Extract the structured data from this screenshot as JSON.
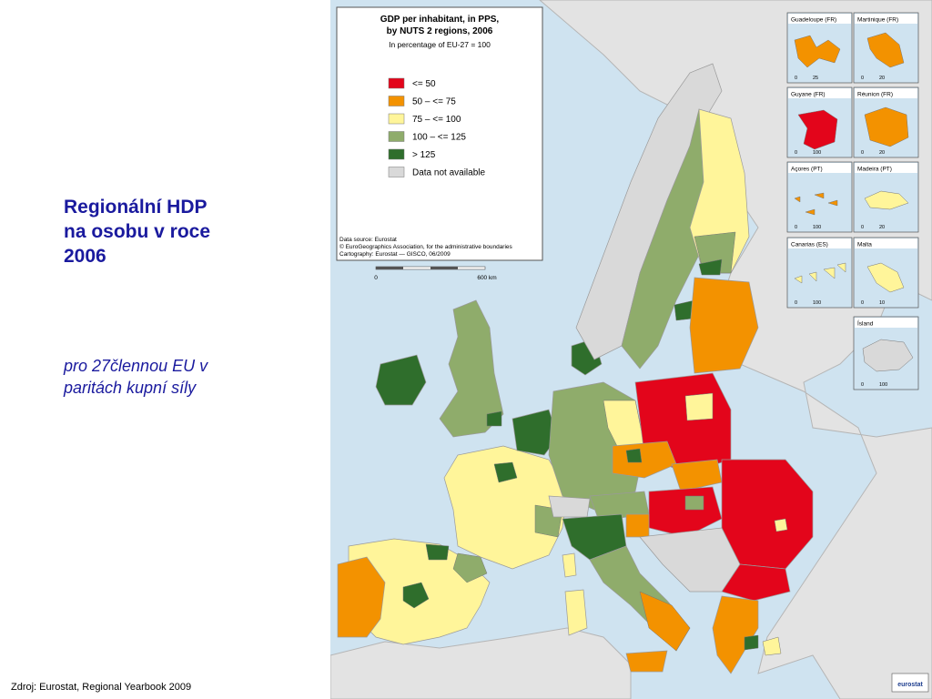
{
  "slide": {
    "title": "Regionální HDP\nna osobu v roce\n2006",
    "subtitle": "pro 27člennou EU v\nparitách kupní síly",
    "source": "Zdroj: Eurostat, Regional Yearbook 2009"
  },
  "map": {
    "title_line1": "GDP per inhabitant, in PPS,",
    "title_line2": "by NUTS 2 regions, 2006",
    "subtitle": "In percentage of EU-27 = 100",
    "legend": [
      {
        "label": "<= 50",
        "color": "#e3051b"
      },
      {
        "label": "50 – <= 75",
        "color": "#f39200"
      },
      {
        "label": "75 – <= 100",
        "color": "#fff59a"
      },
      {
        "label": "100 – <= 125",
        "color": "#8fac6b"
      },
      {
        "label": "> 125",
        "color": "#2f6e2c"
      },
      {
        "label": "Data not available",
        "color": "#d9d9d9"
      }
    ],
    "credits": [
      "Data source: Eurostat",
      "© EuroGeographics Association, for the administrative boundaries",
      "Cartography: Eurostat — GISCO, 06/2009"
    ],
    "scale_start": "0",
    "scale_end": "600 km",
    "logo": "eurostat",
    "insets": [
      {
        "name": "Guadeloupe (FR)",
        "scale_start": "0",
        "scale_end": "25"
      },
      {
        "name": "Martinique (FR)",
        "scale_start": "0",
        "scale_end": "20"
      },
      {
        "name": "Guyane (FR)",
        "scale_start": "0",
        "scale_end": "100"
      },
      {
        "name": "Réunion (FR)",
        "scale_start": "0",
        "scale_end": "20"
      },
      {
        "name": "Açores (PT)",
        "scale_start": "0",
        "scale_end": "100"
      },
      {
        "name": "Madeira (PT)",
        "scale_start": "0",
        "scale_end": "20"
      },
      {
        "name": "Canarias (ES)",
        "scale_start": "0",
        "scale_end": "100"
      },
      {
        "name": "Malta",
        "scale_start": "0",
        "scale_end": "10"
      },
      {
        "name": "Ísland",
        "scale_start": "0",
        "scale_end": "100"
      }
    ]
  }
}
